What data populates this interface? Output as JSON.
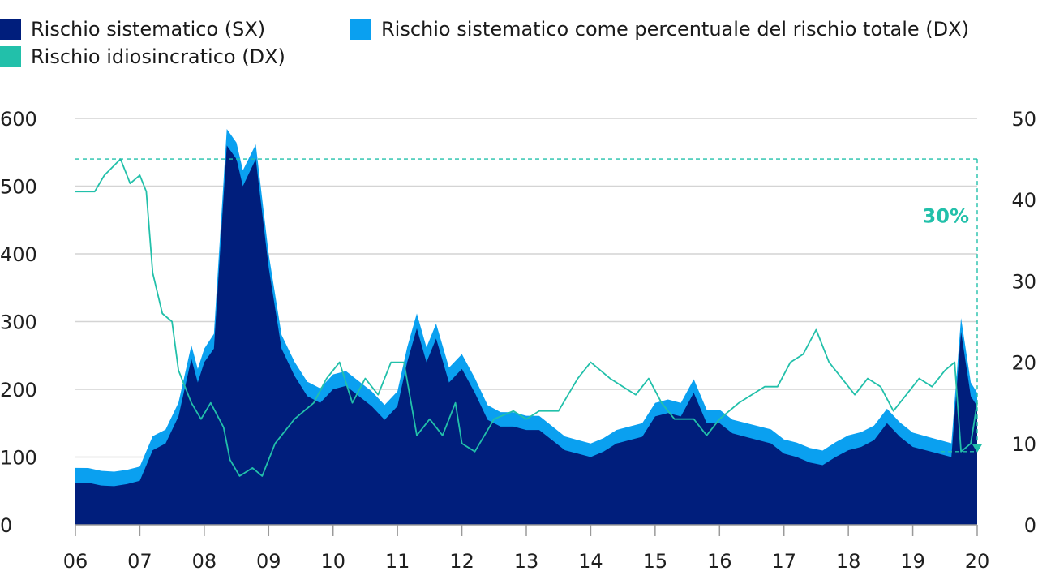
{
  "colors": {
    "systematic_fill": "#001e7c",
    "share_fill": "#0aa0f0",
    "idiosyncratic_line": "#22c0aa",
    "grid": "#d4d4d4",
    "axis": "#9a9a9a",
    "text": "#1f1f1f"
  },
  "legend": {
    "items": [
      {
        "label": "Rischio sistematico (SX)",
        "color": "#001e7c"
      },
      {
        "label": "Rischio idiosincratico (DX)",
        "color": "#22c0aa"
      },
      {
        "label": "Rischio sistematico come percentuale del rischio totale (DX)",
        "color": "#0aa0f0"
      }
    ]
  },
  "chart_data": {
    "type": "area",
    "title": "",
    "xlabel": "",
    "ylabel_left": "",
    "ylabel_right": "",
    "x_ticks": [
      "06",
      "07",
      "08",
      "09",
      "10",
      "11",
      "12",
      "13",
      "14",
      "15",
      "16",
      "17",
      "18",
      "19",
      "20"
    ],
    "x_range": [
      2006.0,
      2020.0
    ],
    "left_axis": {
      "range": [
        0,
        600
      ],
      "ticks": [
        "0",
        "100",
        "200",
        "300",
        "400",
        "500",
        "600"
      ]
    },
    "right_axis": {
      "range": [
        0,
        50
      ],
      "ticks": [
        "0",
        "10",
        "20",
        "30",
        "40",
        "50"
      ]
    },
    "grid": true,
    "legend_position": "top",
    "series": [
      {
        "name": "Rischio sistematico (SX)",
        "axis": "left",
        "render": "area",
        "points": [
          [
            2006.0,
            62
          ],
          [
            2006.2,
            62
          ],
          [
            2006.4,
            58
          ],
          [
            2006.6,
            57
          ],
          [
            2006.8,
            60
          ],
          [
            2007.0,
            65
          ],
          [
            2007.2,
            110
          ],
          [
            2007.4,
            120
          ],
          [
            2007.6,
            160
          ],
          [
            2007.8,
            245
          ],
          [
            2007.9,
            210
          ],
          [
            2008.0,
            240
          ],
          [
            2008.15,
            260
          ],
          [
            2008.35,
            560
          ],
          [
            2008.5,
            540
          ],
          [
            2008.6,
            500
          ],
          [
            2008.8,
            540
          ],
          [
            2009.0,
            380
          ],
          [
            2009.2,
            260
          ],
          [
            2009.4,
            220
          ],
          [
            2009.6,
            190
          ],
          [
            2009.8,
            180
          ],
          [
            2010.0,
            200
          ],
          [
            2010.2,
            205
          ],
          [
            2010.4,
            190
          ],
          [
            2010.6,
            175
          ],
          [
            2010.8,
            155
          ],
          [
            2011.0,
            175
          ],
          [
            2011.15,
            240
          ],
          [
            2011.3,
            290
          ],
          [
            2011.45,
            240
          ],
          [
            2011.6,
            275
          ],
          [
            2011.8,
            210
          ],
          [
            2012.0,
            230
          ],
          [
            2012.2,
            195
          ],
          [
            2012.4,
            155
          ],
          [
            2012.6,
            145
          ],
          [
            2012.8,
            145
          ],
          [
            2013.0,
            140
          ],
          [
            2013.2,
            140
          ],
          [
            2013.4,
            125
          ],
          [
            2013.6,
            110
          ],
          [
            2013.8,
            105
          ],
          [
            2014.0,
            100
          ],
          [
            2014.2,
            108
          ],
          [
            2014.4,
            120
          ],
          [
            2014.6,
            125
          ],
          [
            2014.8,
            130
          ],
          [
            2015.0,
            160
          ],
          [
            2015.2,
            165
          ],
          [
            2015.4,
            160
          ],
          [
            2015.6,
            195
          ],
          [
            2015.8,
            150
          ],
          [
            2016.0,
            150
          ],
          [
            2016.2,
            135
          ],
          [
            2016.4,
            130
          ],
          [
            2016.6,
            125
          ],
          [
            2016.8,
            120
          ],
          [
            2017.0,
            105
          ],
          [
            2017.2,
            100
          ],
          [
            2017.4,
            92
          ],
          [
            2017.6,
            88
          ],
          [
            2017.8,
            100
          ],
          [
            2018.0,
            110
          ],
          [
            2018.2,
            115
          ],
          [
            2018.4,
            125
          ],
          [
            2018.6,
            150
          ],
          [
            2018.8,
            130
          ],
          [
            2019.0,
            115
          ],
          [
            2019.2,
            110
          ],
          [
            2019.4,
            105
          ],
          [
            2019.6,
            100
          ],
          [
            2019.75,
            285
          ],
          [
            2019.9,
            190
          ],
          [
            2020.0,
            175
          ]
        ]
      },
      {
        "name": "Rischio sistematico come percentuale del rischio totale (DX)",
        "axis": "left",
        "render": "band",
        "band_offset": [
          [
            2006.0,
            22
          ],
          [
            2008.0,
            20
          ],
          [
            2008.4,
            25
          ],
          [
            2009.0,
            20
          ],
          [
            2010.0,
            22
          ],
          [
            2012.0,
            22
          ],
          [
            2014.0,
            20
          ],
          [
            2016.0,
            20
          ],
          [
            2018.0,
            22
          ],
          [
            2020.0,
            20
          ]
        ]
      },
      {
        "name": "Rischio idiosincratico (DX)",
        "axis": "right",
        "render": "line",
        "points": [
          [
            2006.0,
            41
          ],
          [
            2006.3,
            41
          ],
          [
            2006.45,
            43
          ],
          [
            2006.7,
            45
          ],
          [
            2006.85,
            42
          ],
          [
            2007.0,
            43
          ],
          [
            2007.1,
            41
          ],
          [
            2007.2,
            31
          ],
          [
            2007.35,
            26
          ],
          [
            2007.5,
            25
          ],
          [
            2007.6,
            19
          ],
          [
            2007.8,
            15
          ],
          [
            2007.95,
            13
          ],
          [
            2008.1,
            15
          ],
          [
            2008.3,
            12
          ],
          [
            2008.4,
            8
          ],
          [
            2008.55,
            6
          ],
          [
            2008.75,
            7
          ],
          [
            2008.9,
            6
          ],
          [
            2009.1,
            10
          ],
          [
            2009.4,
            13
          ],
          [
            2009.7,
            15
          ],
          [
            2009.9,
            18
          ],
          [
            2010.1,
            20
          ],
          [
            2010.3,
            15
          ],
          [
            2010.5,
            18
          ],
          [
            2010.7,
            16
          ],
          [
            2010.9,
            20
          ],
          [
            2011.1,
            20
          ],
          [
            2011.3,
            11
          ],
          [
            2011.5,
            13
          ],
          [
            2011.7,
            11
          ],
          [
            2011.9,
            15
          ],
          [
            2012.0,
            10
          ],
          [
            2012.2,
            9
          ],
          [
            2012.5,
            13
          ],
          [
            2012.8,
            14
          ],
          [
            2013.0,
            13
          ],
          [
            2013.2,
            14
          ],
          [
            2013.5,
            14
          ],
          [
            2013.8,
            18
          ],
          [
            2014.0,
            20
          ],
          [
            2014.3,
            18
          ],
          [
            2014.5,
            17
          ],
          [
            2014.7,
            16
          ],
          [
            2014.9,
            18
          ],
          [
            2015.1,
            15
          ],
          [
            2015.3,
            13
          ],
          [
            2015.6,
            13
          ],
          [
            2015.8,
            11
          ],
          [
            2016.0,
            13
          ],
          [
            2016.3,
            15
          ],
          [
            2016.5,
            16
          ],
          [
            2016.7,
            17
          ],
          [
            2016.9,
            17
          ],
          [
            2017.1,
            20
          ],
          [
            2017.3,
            21
          ],
          [
            2017.5,
            24
          ],
          [
            2017.7,
            20
          ],
          [
            2017.9,
            18
          ],
          [
            2018.1,
            16
          ],
          [
            2018.3,
            18
          ],
          [
            2018.5,
            17
          ],
          [
            2018.7,
            14
          ],
          [
            2018.9,
            16
          ],
          [
            2019.1,
            18
          ],
          [
            2019.3,
            17
          ],
          [
            2019.5,
            19
          ],
          [
            2019.65,
            20
          ],
          [
            2019.75,
            9
          ],
          [
            2019.9,
            10
          ],
          [
            2020.0,
            15
          ]
        ]
      }
    ],
    "annotations": [
      {
        "type": "bracket",
        "label": "30%",
        "x": 2020.0,
        "from": 45,
        "to": 9,
        "axis": "right"
      }
    ]
  }
}
